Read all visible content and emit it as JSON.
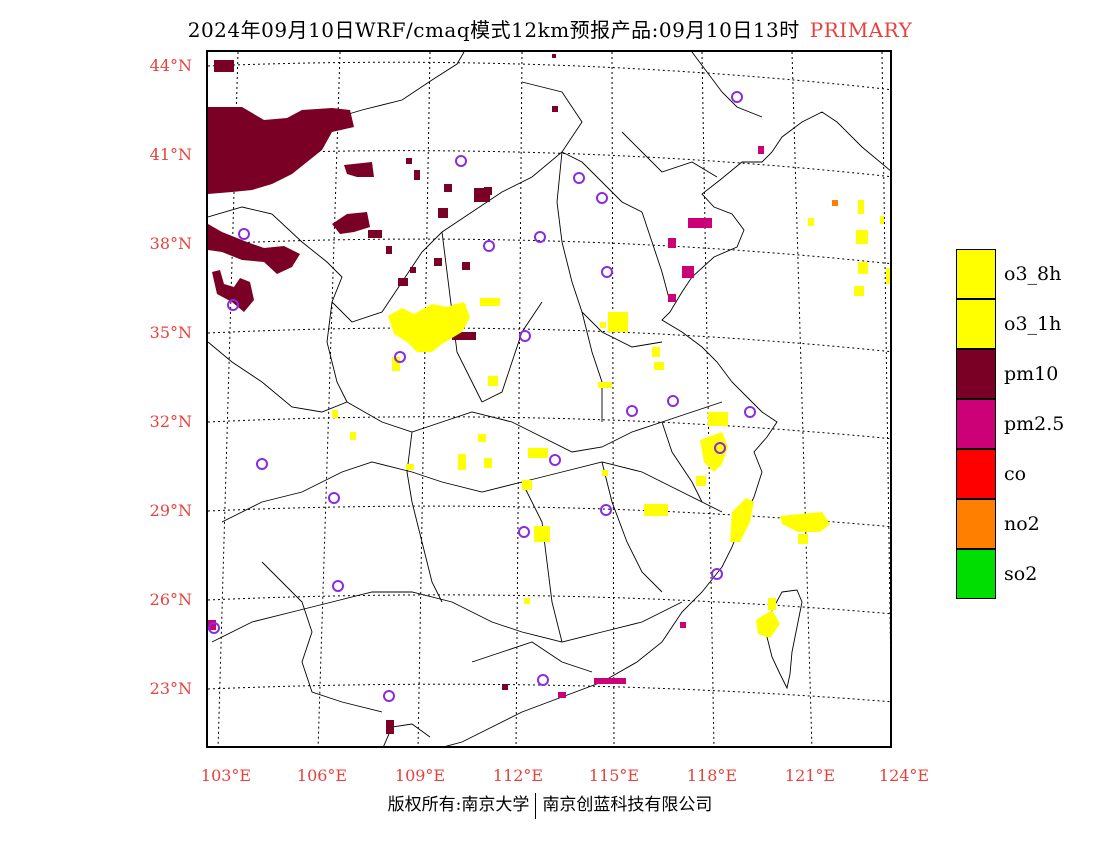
{
  "title": {
    "main": "2024年09月10日WRF/cmaq模式12km预报产品:09月10日13时",
    "tag": "PRIMARY"
  },
  "axes": {
    "lat_labels": [
      "44°N",
      "41°N",
      "38°N",
      "35°N",
      "32°N",
      "29°N",
      "26°N",
      "23°N"
    ],
    "lon_labels": [
      "103°E",
      "106°E",
      "109°E",
      "112°E",
      "115°E",
      "118°E",
      "121°E",
      "124°E"
    ]
  },
  "legend": [
    {
      "label": "o3_8h",
      "color": "#ffff00"
    },
    {
      "label": "o3_1h",
      "color": "#ffff00"
    },
    {
      "label": "pm10",
      "color": "#7a0026"
    },
    {
      "label": "pm2.5",
      "color": "#cc0077"
    },
    {
      "label": "co",
      "color": "#ff0000"
    },
    {
      "label": "no2",
      "color": "#ff7f00"
    },
    {
      "label": "so2",
      "color": "#00dd00"
    }
  ],
  "copyright": {
    "left": "版权所有:南京大学",
    "right": "南京创蓝科技有限公司"
  },
  "colors": {
    "axis_label": "#e8413c",
    "station_marker": "#8a2be2",
    "pm10": "#7a0026",
    "o3": "#ffff00",
    "pm25": "#cc0077"
  }
}
